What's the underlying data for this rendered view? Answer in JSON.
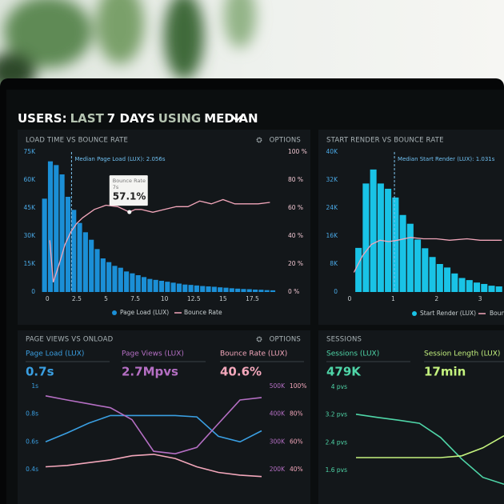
{
  "header": {
    "title_parts": [
      "USERS:",
      "LAST",
      "7 DAYS",
      "USING",
      "MEDIAN"
    ]
  },
  "chart_data": [
    {
      "type": "histogram",
      "title": "LOAD TIME VS BOUNCE RATE",
      "options": "OPTIONS",
      "bins": [
        -0.5,
        0,
        0.5,
        1,
        1.5,
        2,
        2.5,
        3,
        3.5,
        4,
        4.5,
        5,
        5.5,
        6,
        6.5,
        7,
        7.5,
        8,
        8.5,
        9,
        9.5,
        10,
        10.5,
        11,
        11.5,
        12,
        12.5,
        13,
        13.5,
        14,
        14.5,
        15,
        15.5,
        16,
        16.5,
        17,
        17.5,
        18,
        18.5,
        19,
        19.5
      ],
      "series": [
        {
          "name": "Page Load (LUX)",
          "color": "#1b8fd6",
          "values": [
            50000,
            70000,
            68000,
            63000,
            51000,
            44000,
            37000,
            32000,
            28000,
            23000,
            18000,
            16000,
            14000,
            13000,
            11000,
            10000,
            9000,
            8000,
            7000,
            6500,
            6000,
            5500,
            5000,
            4500,
            4000,
            3800,
            3500,
            3200,
            3000,
            2800,
            2500,
            2300,
            2000,
            1800,
            1600,
            1500,
            1300,
            1200,
            1000,
            900
          ]
        },
        {
          "name": "Bounce Rate",
          "color": "#f3a7bb",
          "axis": "y2",
          "x": [
            0.2,
            0.5,
            1,
            1.5,
            2,
            2.5,
            3,
            4,
            5,
            6,
            7,
            7.5,
            8,
            9,
            10,
            11,
            12,
            13,
            14,
            15,
            16,
            17,
            18,
            19
          ],
          "values": [
            37,
            7,
            20,
            34,
            43,
            49,
            53,
            59,
            62,
            61,
            57.1,
            59,
            59,
            57,
            59,
            61,
            61,
            65,
            63,
            66,
            63,
            63,
            63,
            64
          ]
        }
      ],
      "xlim": [
        -0.5,
        20
      ],
      "xticks": [
        0,
        2.5,
        5,
        7.5,
        10,
        12.5,
        15,
        17.5
      ],
      "ylim": [
        0,
        75000
      ],
      "yticks": [
        0,
        {
          "value": 15000,
          "label": "15K"
        },
        {
          "value": 30000,
          "label": "30K"
        },
        {
          "value": 45000,
          "label": "45K"
        },
        {
          "value": 60000,
          "label": "60K"
        },
        {
          "value": 75000,
          "label": "75K"
        }
      ],
      "y2lim": [
        0,
        100
      ],
      "y2ticks": [
        {
          "value": 0,
          "label": "0 %"
        },
        {
          "value": 20,
          "label": "20 %"
        },
        {
          "value": 40,
          "label": "40 %"
        },
        {
          "value": 60,
          "label": "60 %"
        },
        {
          "value": 80,
          "label": "80 %"
        },
        {
          "value": 100,
          "label": "100 %"
        }
      ],
      "annotations": [
        {
          "text": "Median Page Load (LUX): 2.056s",
          "x": 2.056
        }
      ],
      "tooltip": {
        "title": "Bounce Rate",
        "subtitle": "7s",
        "text": "57.1%",
        "x": 7,
        "y": 57.1
      }
    },
    {
      "type": "histogram",
      "title": "START RENDER VS BOUNCE RATE",
      "bins": [
        0.12,
        0.29,
        0.46,
        0.63,
        0.8,
        0.97,
        1.14,
        1.31,
        1.48,
        1.65,
        1.82,
        1.99,
        2.16,
        2.33,
        2.5,
        2.67,
        2.84,
        3.01,
        3.18,
        3.35,
        3.52
      ],
      "series": [
        {
          "name": "Start Render (LUX)",
          "color": "#19c3e6",
          "values": [
            12600,
            31000,
            35000,
            31000,
            29500,
            27000,
            22000,
            19500,
            15000,
            12500,
            10000,
            8000,
            7000,
            5300,
            4000,
            3400,
            2700,
            2300,
            1800,
            1600
          ]
        },
        {
          "name": "Bounce Rate",
          "color": "#f3a7bb",
          "axis": "y2",
          "x": [
            0.1,
            0.3,
            0.5,
            0.7,
            0.9,
            1.1,
            1.4,
            1.7,
            2.0,
            2.3,
            2.7,
            3.0,
            3.5
          ],
          "values": [
            14,
            26,
            34,
            37,
            36,
            37,
            39,
            38,
            38,
            37,
            38,
            37,
            37
          ]
        }
      ],
      "xlim": [
        0,
        3.55
      ],
      "xticks": [
        0,
        1,
        2,
        3
      ],
      "ylim": [
        0,
        40000
      ],
      "yticks": [
        0,
        {
          "value": 8000,
          "label": "8K"
        },
        {
          "value": 16000,
          "label": "16K"
        },
        {
          "value": 24000,
          "label": "24K"
        },
        {
          "value": 32000,
          "label": "32K"
        },
        {
          "value": 40000,
          "label": "40K"
        }
      ],
      "y2lim": [
        0,
        100
      ],
      "annotations": [
        {
          "text": "Median Start Render (LUX): 1.031s",
          "x": 1.031
        }
      ]
    },
    {
      "type": "line",
      "title": "PAGE VIEWS VS ONLOAD",
      "options": "OPTIONS",
      "categories": [
        null,
        null,
        null,
        null,
        null,
        null,
        null,
        null,
        null,
        null,
        null
      ],
      "series": [
        {
          "name": "Page Load (LUX)",
          "summary": "0.7s",
          "color": "#3a9fe2",
          "values": [
            0.6,
            0.665,
            0.735,
            0.79,
            0.79,
            0.79,
            0.79,
            0.78,
            0.64,
            0.6,
            0.68
          ]
        },
        {
          "name": "Page Views (LUX)",
          "summary": "2.7Mpvs",
          "color": "#b56fc4",
          "axis": "y2",
          "values": [
            466000,
            451000,
            437000,
            423000,
            380000,
            266000,
            257000,
            280000,
            366000,
            451000,
            460000
          ]
        },
        {
          "name": "Bounce Rate (LUX)",
          "summary": "40.6%",
          "color": "#f3a7bb",
          "axis": "y3",
          "values": [
            42,
            43,
            45,
            47,
            50,
            51,
            48,
            42,
            38,
            36,
            35
          ]
        }
      ],
      "ylim": [
        0.4,
        1
      ],
      "yticks": [
        {
          "value": 0.4,
          "label": "0.4s"
        },
        {
          "value": 0.6,
          "label": "0.6s"
        },
        {
          "value": 0.8,
          "label": "0.8s"
        },
        {
          "value": 1,
          "label": "1s"
        }
      ],
      "y2lim": [
        200000,
        500000
      ],
      "y2ticks": [
        {
          "value": 200000,
          "label": "200K"
        },
        {
          "value": 300000,
          "label": "300K"
        },
        {
          "value": 400000,
          "label": "400K"
        },
        {
          "value": 500000,
          "label": "500K"
        }
      ],
      "y3lim": [
        40,
        100
      ],
      "y3ticks": [
        {
          "value": 40,
          "label": "40%"
        },
        {
          "value": 60,
          "label": "60%"
        },
        {
          "value": 80,
          "label": "80%"
        },
        {
          "value": 100,
          "label": "100%"
        }
      ]
    },
    {
      "type": "line",
      "title": "SESSIONS",
      "categories": [
        null,
        null,
        null,
        null,
        null,
        null,
        null,
        null
      ],
      "series": [
        {
          "name": "Sessions (LUX)",
          "summary": "479K",
          "color": "#4fd6a8",
          "values": [
            3.22,
            3.13,
            3.05,
            2.96,
            2.55,
            1.93,
            1.4,
            1.2
          ]
        },
        {
          "name": "Session Length (LUX)",
          "summary": "17min",
          "color": "#c4f27e",
          "values": [
            1.97,
            1.97,
            1.97,
            1.97,
            1.97,
            2.02,
            2.25,
            2.6
          ]
        }
      ],
      "ylim": [
        1.6,
        4
      ],
      "yticks": [
        {
          "value": 1.6,
          "label": "1.6 pvs"
        },
        {
          "value": 2.4,
          "label": "2.4 pvs"
        },
        {
          "value": 3.2,
          "label": "3.2 pvs"
        },
        {
          "value": 4,
          "label": "4 pvs"
        }
      ]
    }
  ]
}
